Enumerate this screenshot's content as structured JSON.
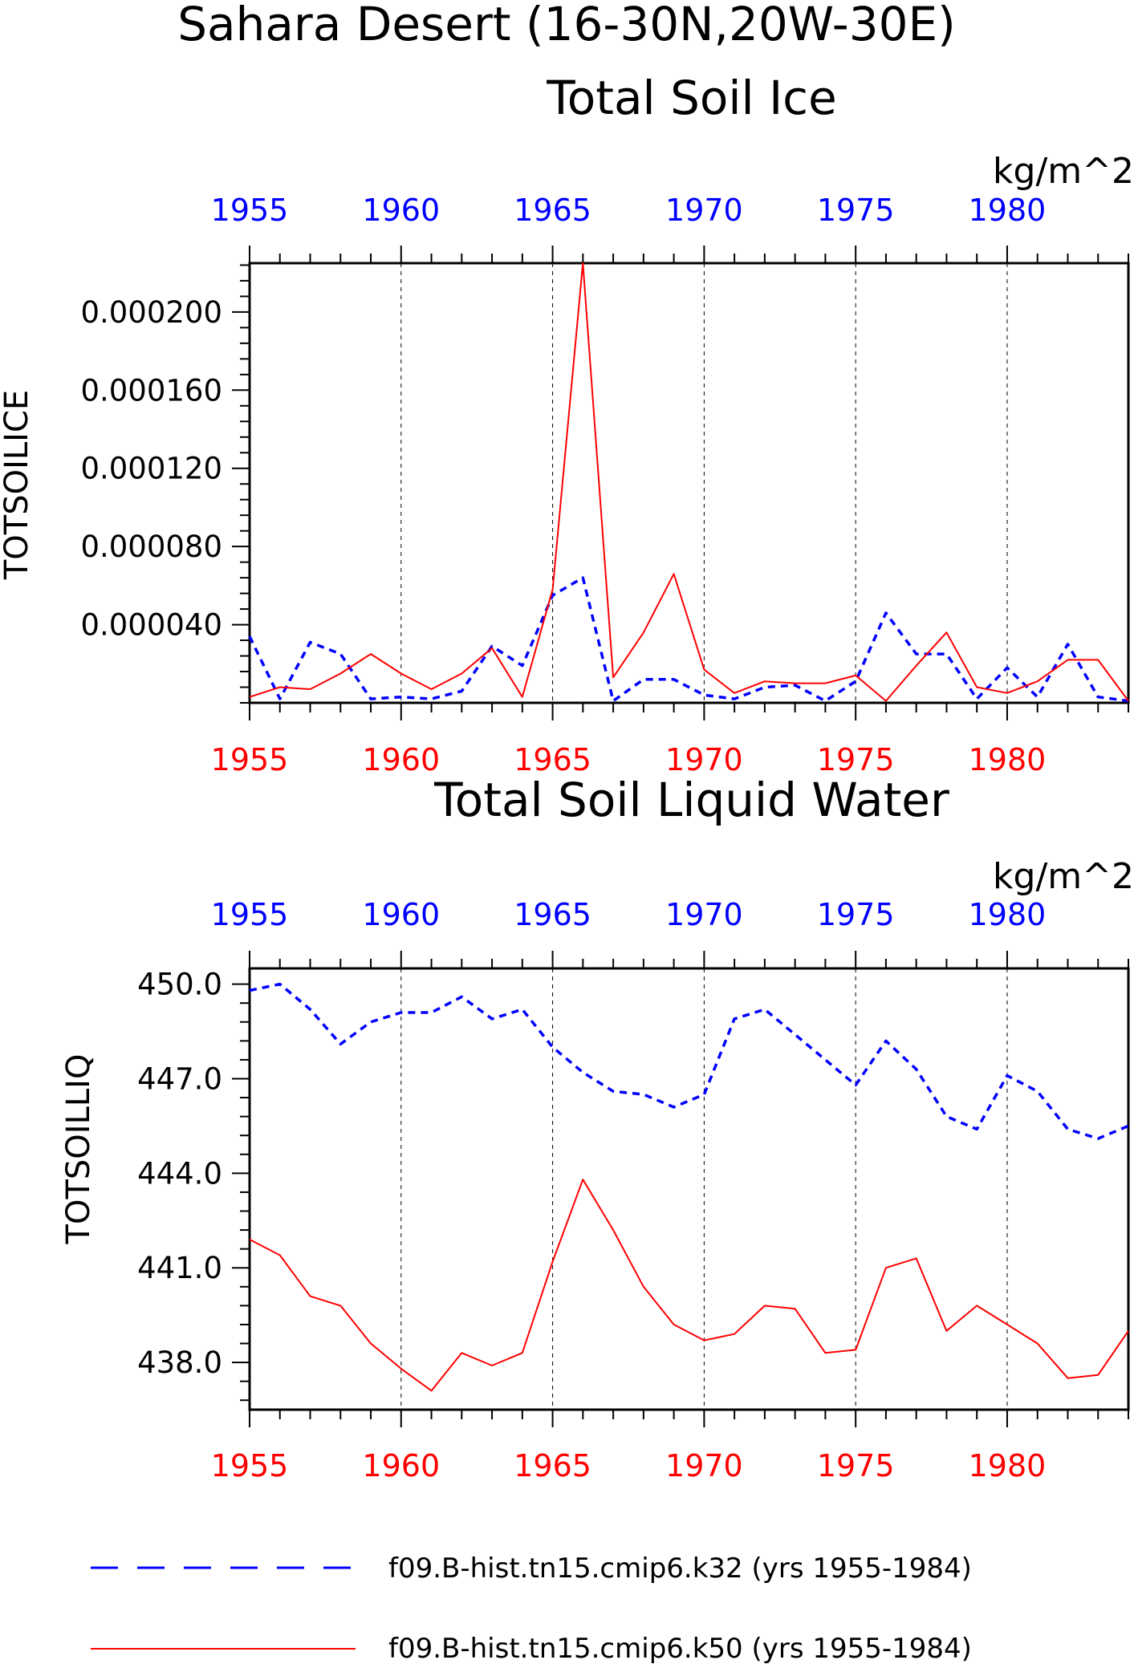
{
  "page_title": "Sahara Desert (16-30N,20W-30E)",
  "colors": {
    "run_a": "#0000ff",
    "run_b": "#ff0000",
    "axis": "#000000",
    "grid": "#000000"
  },
  "legend": {
    "entries": [
      {
        "label": "f09.B-hist.tn15.cmip6.k32 (yrs 1955-1984)",
        "color": "#0000ff",
        "style": "dashed"
      },
      {
        "label": "f09.B-hist.tn15.cmip6.k50 (yrs 1955-1984)",
        "color": "#ff0000",
        "style": "solid"
      }
    ]
  },
  "chart_data": [
    {
      "type": "line",
      "title": "Total Soil Ice",
      "ylabel": "TOTSOILICE",
      "units": "kg/m^2",
      "xlim": [
        1955,
        1984
      ],
      "ylim": [
        0,
        0.000225
      ],
      "x_ticks": [
        "1955",
        "1960",
        "1965",
        "1970",
        "1975",
        "1980"
      ],
      "x_top_ticks": [
        "1955",
        "1960",
        "1965",
        "1970",
        "1975",
        "1980"
      ],
      "y_ticks": [
        "0.000040",
        "0.000080",
        "0.000120",
        "0.000160",
        "0.000200"
      ],
      "x": [
        1955,
        1956,
        1957,
        1958,
        1959,
        1960,
        1961,
        1962,
        1963,
        1964,
        1965,
        1966,
        1967,
        1968,
        1969,
        1970,
        1971,
        1972,
        1973,
        1974,
        1975,
        1976,
        1977,
        1978,
        1979,
        1980,
        1981,
        1982,
        1983,
        1984
      ],
      "grid_x": true,
      "series": [
        {
          "style": "dashed",
          "color": "#0000ff",
          "values": [
            3.4e-05,
            2e-06,
            3.1e-05,
            2.5e-05,
            2e-06,
            3e-06,
            2e-06,
            6e-06,
            2.9e-05,
            1.9e-05,
            5.5e-05,
            6.4e-05,
            1e-06,
            1.2e-05,
            1.2e-05,
            4e-06,
            2e-06,
            8e-06,
            9e-06,
            1e-06,
            1.1e-05,
            4.6e-05,
            2.5e-05,
            2.5e-05,
            2e-06,
            1.8e-05,
            3e-06,
            3e-05,
            3e-06,
            1e-06
          ]
        },
        {
          "style": "solid",
          "color": "#ff0000",
          "values": [
            3e-06,
            8e-06,
            7e-06,
            1.5e-05,
            2.5e-05,
            1.5e-05,
            7e-06,
            1.5e-05,
            2.8e-05,
            3e-06,
            5.8e-05,
            0.000225,
            1.3e-05,
            3.6e-05,
            6.6e-05,
            1.7e-05,
            5e-06,
            1.1e-05,
            1e-05,
            1e-05,
            1.4e-05,
            1e-06,
            1.9e-05,
            3.6e-05,
            8e-06,
            5e-06,
            1.1e-05,
            2.2e-05,
            2.2e-05,
            1e-06
          ]
        }
      ]
    },
    {
      "type": "line",
      "title": "Total Soil Liquid Water",
      "ylabel": "TOTSOILLIQ",
      "units": "kg/m^2",
      "xlim": [
        1955,
        1984
      ],
      "ylim": [
        436.5,
        450.5
      ],
      "x_ticks": [
        "1955",
        "1960",
        "1965",
        "1970",
        "1975",
        "1980"
      ],
      "x_top_ticks": [
        "1955",
        "1960",
        "1965",
        "1970",
        "1975",
        "1980"
      ],
      "y_ticks": [
        "438.0",
        "441.0",
        "444.0",
        "447.0",
        "450.0"
      ],
      "x": [
        1955,
        1956,
        1957,
        1958,
        1959,
        1960,
        1961,
        1962,
        1963,
        1964,
        1965,
        1966,
        1967,
        1968,
        1969,
        1970,
        1971,
        1972,
        1973,
        1974,
        1975,
        1976,
        1977,
        1978,
        1979,
        1980,
        1981,
        1982,
        1983,
        1984
      ],
      "grid_x": true,
      "series": [
        {
          "style": "dashed",
          "color": "#0000ff",
          "values": [
            449.8,
            450.0,
            449.2,
            448.1,
            448.8,
            449.1,
            449.1,
            449.6,
            448.9,
            449.2,
            448.0,
            447.2,
            446.6,
            446.5,
            446.1,
            446.5,
            448.9,
            449.2,
            448.4,
            447.6,
            446.8,
            448.2,
            447.3,
            445.8,
            445.4,
            447.1,
            446.6,
            445.4,
            445.1,
            445.5
          ]
        },
        {
          "style": "solid",
          "color": "#ff0000",
          "values": [
            441.9,
            441.4,
            440.1,
            439.8,
            438.6,
            437.8,
            437.1,
            438.3,
            437.9,
            438.3,
            441.2,
            443.8,
            442.2,
            440.4,
            439.2,
            438.7,
            438.9,
            439.8,
            439.7,
            438.3,
            438.4,
            441.0,
            441.3,
            439.0,
            439.8,
            439.2,
            438.6,
            437.5,
            437.6,
            439.0
          ]
        }
      ]
    }
  ]
}
